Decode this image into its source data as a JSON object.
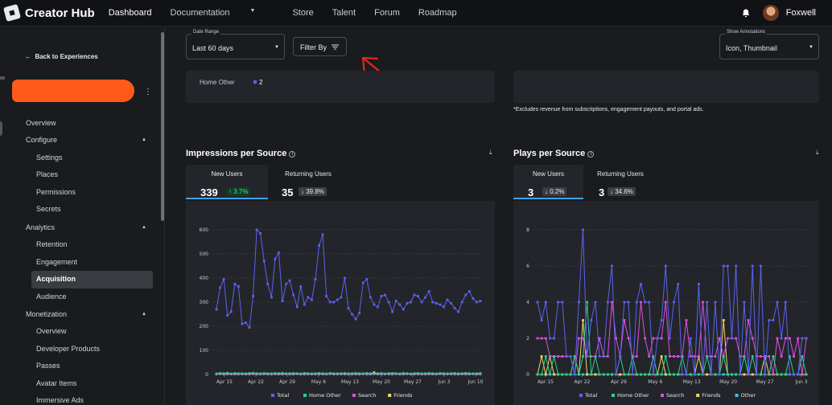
{
  "app": {
    "title": "Creator Hub"
  },
  "nav": {
    "items": [
      "Dashboard",
      "Documentation",
      "Store",
      "Talent",
      "Forum",
      "Roadmap"
    ],
    "active": "Dashboard"
  },
  "user": {
    "name": "Foxwell"
  },
  "sidebar": {
    "back_label": "Back to Experiences",
    "items": [
      {
        "label": "Overview",
        "level": "top"
      },
      {
        "label": "Configure",
        "level": "top",
        "expandable": true
      },
      {
        "label": "Settings",
        "level": "sub"
      },
      {
        "label": "Places",
        "level": "sub"
      },
      {
        "label": "Permissions",
        "level": "sub"
      },
      {
        "label": "Secrets",
        "level": "sub"
      },
      {
        "label": "Analytics",
        "level": "top",
        "expandable": true
      },
      {
        "label": "Retention",
        "level": "sub"
      },
      {
        "label": "Engagement",
        "level": "sub"
      },
      {
        "label": "Acquisition",
        "level": "sub",
        "active": true
      },
      {
        "label": "Audience",
        "level": "sub"
      },
      {
        "label": "Monetization",
        "level": "top",
        "expandable": true
      },
      {
        "label": "Overview",
        "level": "sub"
      },
      {
        "label": "Developer Products",
        "level": "sub"
      },
      {
        "label": "Passes",
        "level": "sub"
      },
      {
        "label": "Avatar Items",
        "level": "sub"
      },
      {
        "label": "Immersive Ads",
        "level": "sub"
      }
    ]
  },
  "controls": {
    "date_range": {
      "label": "Date Range",
      "value": "Last 60 days"
    },
    "filter_label": "Filter By",
    "annotations": {
      "label": "Show Annotations",
      "value": "Icon, Thumbnail"
    }
  },
  "top_panel": {
    "row_label": "Home Other",
    "row_value": "2"
  },
  "note": "*Excludes revenue from subscriptions, engagement payouts, and portal ads.",
  "impressions": {
    "title": "Impressions per Source",
    "tabs": [
      {
        "label": "New Users",
        "value": "339",
        "change": "↑ 3.7%",
        "direction": "up"
      },
      {
        "label": "Returning Users",
        "value": "35",
        "change": "↓ 39.8%",
        "direction": "down"
      }
    ]
  },
  "plays": {
    "title": "Plays per Source",
    "tabs": [
      {
        "label": "New Users",
        "value": "3",
        "change": "↓ 0.2%",
        "direction": "down"
      },
      {
        "label": "Returning Users",
        "value": "3",
        "change": "↓ 34.6%",
        "direction": "down"
      }
    ]
  },
  "chart_data": [
    {
      "type": "line",
      "ylim": [
        0,
        600
      ],
      "yticks": [
        0,
        100,
        200,
        300,
        400,
        500,
        600
      ],
      "xticks": [
        "Apr 15",
        "Apr 22",
        "Apr 29",
        "May 6",
        "May 13",
        "May 20",
        "May 27",
        "Jun 3",
        "Jun 10"
      ],
      "series": [
        {
          "name": "Total",
          "color": "#5b63f0",
          "values": [
            270,
            360,
            395,
            245,
            260,
            375,
            365,
            210,
            215,
            195,
            325,
            600,
            585,
            470,
            375,
            320,
            480,
            505,
            305,
            375,
            390,
            330,
            280,
            365,
            290,
            320,
            310,
            395,
            535,
            580,
            325,
            300,
            300,
            310,
            320,
            400,
            275,
            250,
            230,
            255,
            380,
            395,
            320,
            290,
            280,
            325,
            330,
            300,
            260,
            305,
            290,
            270,
            295,
            300,
            330,
            325,
            300,
            320,
            345,
            300,
            295,
            290,
            280,
            310,
            295,
            275,
            260,
            300,
            330,
            345,
            315,
            300,
            305
          ]
        },
        {
          "name": "Home Other",
          "color": "#2bd18a",
          "values": [
            3,
            5,
            4,
            6,
            3,
            5,
            4,
            4,
            3,
            5,
            6,
            4,
            3,
            5,
            4,
            3,
            5,
            4,
            6,
            3,
            4,
            5,
            4,
            3,
            5,
            4,
            3,
            4,
            5,
            4,
            3,
            5,
            4,
            3,
            4,
            5,
            3,
            4,
            5,
            4,
            3,
            5,
            4,
            3,
            4,
            5,
            3,
            4,
            5,
            4,
            3,
            5,
            4,
            3,
            4,
            5,
            3,
            4,
            5,
            4,
            3,
            5,
            4,
            3,
            4,
            5,
            3,
            4,
            5,
            4,
            3,
            4,
            5
          ]
        },
        {
          "name": "Search",
          "color": "#e04fe0",
          "values": [
            1,
            2,
            1,
            1,
            2,
            1,
            1,
            2,
            1,
            1,
            2,
            1,
            1,
            2,
            1,
            1,
            2,
            1,
            1,
            2,
            1,
            1,
            2,
            1,
            1,
            2,
            1,
            1,
            2,
            1,
            1,
            2,
            1,
            1,
            2,
            1,
            1,
            2,
            1,
            1,
            2,
            1,
            1,
            2,
            1,
            1,
            2,
            1,
            1,
            2,
            1,
            1,
            2,
            1,
            1,
            2,
            1,
            1,
            2,
            1,
            1,
            2,
            1,
            1,
            2,
            1,
            1,
            2,
            1,
            1,
            2,
            1,
            1
          ]
        },
        {
          "name": "Friends",
          "color": "#f3d66a",
          "values": [
            2,
            3,
            2,
            4,
            2,
            3,
            2,
            2,
            3,
            2,
            4,
            2,
            3,
            2,
            2,
            3,
            2,
            4,
            2,
            3,
            2,
            2,
            3,
            2,
            4,
            2,
            3,
            2,
            2,
            3,
            2,
            4,
            2,
            3,
            2,
            2,
            3,
            2,
            4,
            2,
            3,
            2,
            2,
            8,
            2,
            3,
            2,
            4,
            2,
            3,
            2,
            2,
            3,
            2,
            4,
            2,
            3,
            2,
            2,
            3,
            2,
            4,
            2,
            3,
            2,
            2,
            3,
            2,
            4,
            2,
            3,
            2,
            2
          ]
        }
      ],
      "legend": [
        "Total",
        "Home Other",
        "Search",
        "Friends"
      ]
    },
    {
      "type": "line",
      "ylim": [
        0,
        8
      ],
      "yticks": [
        0,
        2,
        4,
        6,
        8
      ],
      "xticks": [
        "Apr 15",
        "Apr 22",
        "Apr 29",
        "May 6",
        "May 13",
        "May 20",
        "May 27",
        "Jun 3"
      ],
      "series": [
        {
          "name": "Total",
          "color": "#5b63f0",
          "values": [
            4,
            3,
            4,
            2,
            2,
            4,
            4,
            1,
            1,
            0,
            4,
            8,
            1,
            3,
            4,
            1,
            1,
            4,
            6,
            0,
            1,
            4,
            4,
            0,
            4,
            5,
            4,
            4,
            0,
            2,
            3,
            6,
            2,
            4,
            5,
            0,
            0,
            2,
            0,
            5,
            0,
            4,
            0,
            4,
            0,
            6,
            6,
            2,
            6,
            0,
            4,
            0,
            6,
            0,
            6,
            0,
            3,
            3,
            4,
            2,
            4,
            0,
            0,
            0,
            2,
            2
          ]
        },
        {
          "name": "Home Other",
          "color": "#2bd18a",
          "values": [
            0,
            0,
            1,
            0,
            1,
            0,
            0,
            0,
            0,
            1,
            0,
            1,
            4,
            0,
            1,
            0,
            0,
            0,
            0,
            0,
            1,
            0,
            0,
            1,
            0,
            0,
            0,
            0,
            1,
            0,
            0,
            1,
            0,
            0,
            0,
            1,
            0,
            0,
            0,
            0,
            0,
            1,
            0,
            0,
            0,
            1,
            0,
            0,
            0,
            0,
            1,
            0,
            1,
            0,
            0,
            0,
            0,
            1,
            0,
            0,
            0,
            1,
            0,
            0,
            1,
            0
          ]
        },
        {
          "name": "Search",
          "color": "#e04fe0",
          "values": [
            2,
            2,
            2,
            1,
            1,
            1,
            1,
            1,
            1,
            0,
            2,
            2,
            1,
            1,
            1,
            2,
            1,
            1,
            4,
            2,
            1,
            3,
            2,
            1,
            1,
            4,
            2,
            1,
            2,
            2,
            2,
            4,
            1,
            1,
            1,
            1,
            3,
            1,
            1,
            1,
            4,
            1,
            1,
            1,
            2,
            1,
            2,
            2,
            2,
            1,
            1,
            3,
            2,
            1,
            1,
            1,
            1,
            0,
            2,
            1,
            2,
            2,
            1,
            2,
            0,
            2
          ]
        },
        {
          "name": "Friends",
          "color": "#f3d66a",
          "values": [
            0,
            1,
            0,
            1,
            0,
            0,
            0,
            0,
            0,
            1,
            0,
            3,
            0,
            0,
            0,
            0,
            0,
            0,
            0,
            0,
            0,
            0,
            0,
            0,
            0,
            0,
            0,
            0,
            0,
            0,
            1,
            0,
            0,
            0,
            0,
            0,
            0,
            0,
            0,
            1,
            0,
            0,
            0,
            0,
            0,
            3,
            0,
            0,
            0,
            0,
            0,
            0,
            0,
            0,
            0,
            1,
            0,
            0,
            0,
            0,
            0,
            0,
            0,
            0,
            0,
            0
          ]
        },
        {
          "name": "Other",
          "color": "#3fc3d8",
          "values": [
            0,
            0,
            0,
            0,
            0,
            0,
            0,
            0,
            0,
            0,
            0,
            0,
            0,
            0,
            0,
            0,
            0,
            0,
            0,
            0,
            0,
            0,
            0,
            0,
            0,
            0,
            0,
            0,
            0,
            0,
            0,
            0,
            0,
            0,
            0,
            0,
            0,
            0,
            0,
            0,
            0,
            0,
            0,
            0,
            0,
            0,
            0,
            0,
            0,
            0,
            0,
            0,
            0,
            0,
            0,
            0,
            0,
            0,
            0,
            0,
            0,
            0,
            0,
            0,
            0,
            0
          ]
        }
      ],
      "legend": [
        "Total",
        "Home Other",
        "Search",
        "Friends",
        "Other"
      ]
    }
  ]
}
